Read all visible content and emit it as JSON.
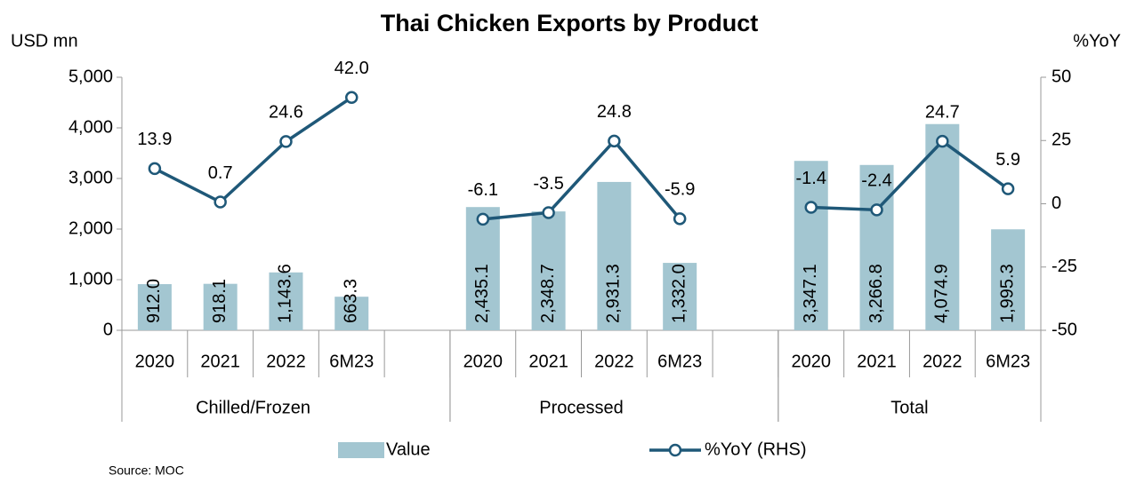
{
  "chart_data": {
    "type": "bar_line",
    "title": "Thai Chicken Exports by Product",
    "y_label": "USD mn",
    "y2_label": "%YoY",
    "source": "Source: MOC",
    "categories": [
      "2020",
      "2021",
      "2022",
      "6M23",
      null,
      "2020",
      "2021",
      "2022",
      "6M23",
      null,
      "2020",
      "2021",
      "2022",
      "6M23"
    ],
    "groups": [
      "Chilled/Frozen",
      "Processed",
      "Total"
    ],
    "group_sizes": [
      4,
      4,
      4
    ],
    "ylim": [
      0,
      5000
    ],
    "yticks": [
      0,
      {
        "value": 1000,
        "label": "1,000"
      },
      {
        "value": 2000,
        "label": "2,000"
      },
      {
        "value": 3000,
        "label": "3,000"
      },
      {
        "value": 4000,
        "label": "4,000"
      },
      {
        "value": 5000,
        "label": "5,000"
      }
    ],
    "y2lim": [
      -50,
      50
    ],
    "y2ticks": [
      -50,
      -25,
      0,
      25,
      50
    ],
    "negative_color": "#ff0000",
    "series": [
      {
        "name": "Value",
        "type": "bar",
        "color": "#a3c6d1",
        "values": [
          912.0,
          918.1,
          1143.6,
          663.3,
          null,
          2435.1,
          2348.7,
          2931.3,
          1332.0,
          null,
          3347.1,
          3266.8,
          4074.9,
          1995.3
        ],
        "value_labels": [
          "912.0",
          "918.1",
          "1,143.6",
          "663.3",
          null,
          "2,435.1",
          "2,348.7",
          "2,931.3",
          "1,332.0",
          null,
          "3,347.1",
          "3,266.8",
          "4,074.9",
          "1,995.3"
        ]
      },
      {
        "name": "%YoY (RHS)",
        "type": "line",
        "axis": "y2",
        "color": "#1f5878",
        "values": [
          13.9,
          0.7,
          24.6,
          42.0,
          null,
          -6.1,
          -3.5,
          24.8,
          -5.9,
          null,
          -1.4,
          -2.4,
          24.7,
          5.9
        ],
        "value_labels": [
          "13.9",
          "0.7",
          "24.6",
          "42.0",
          null,
          "-6.1",
          "-3.5",
          "24.8",
          "-5.9",
          null,
          "-1.4",
          "-2.4",
          "24.7",
          "5.9"
        ]
      }
    ]
  }
}
